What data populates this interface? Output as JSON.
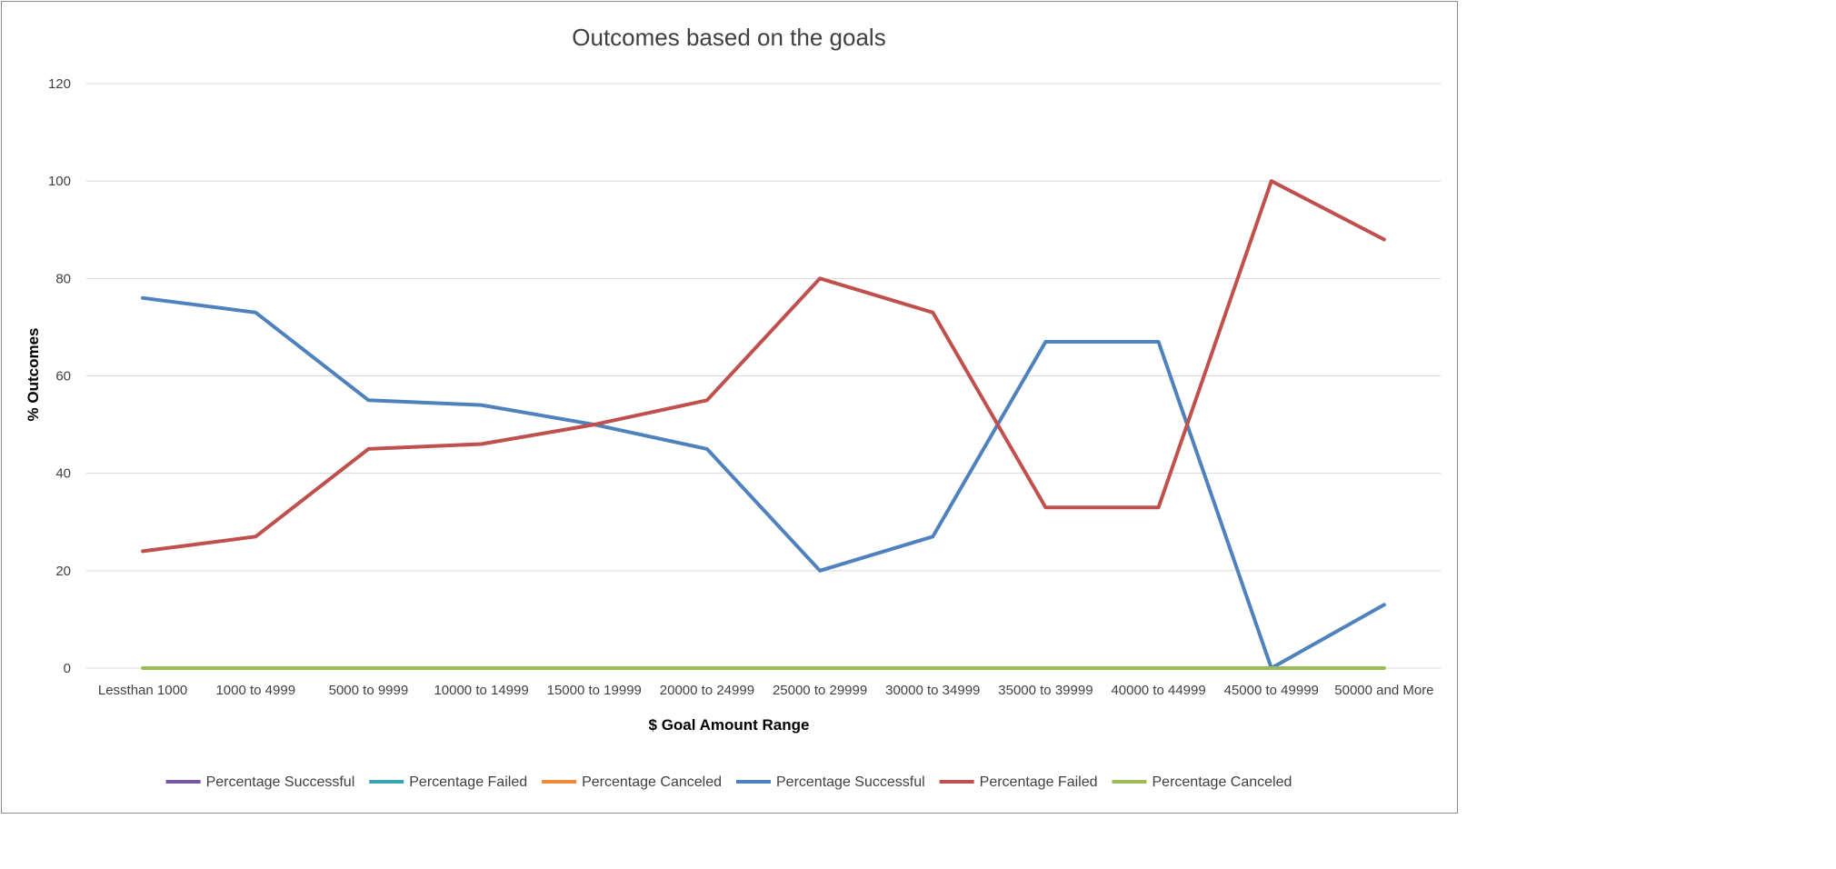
{
  "chart_data": {
    "type": "line",
    "title": "Outcomes based on the goals",
    "xlabel": "$ Goal Amount Range",
    "ylabel": "% Outcomes",
    "ylim": [
      0,
      120
    ],
    "yticks": [
      0,
      20,
      40,
      60,
      80,
      100,
      120
    ],
    "grid": true,
    "legend_position": "bottom",
    "categories": [
      "Lessthan 1000",
      "1000 to 4999",
      "5000 to 9999",
      "10000 to 14999",
      "15000 to 19999",
      "20000 to 24999",
      "25000 to 29999",
      "30000 to 34999",
      "35000 to 39999",
      "40000 to 44999",
      "45000 to 49999",
      "50000 and More"
    ],
    "series": [
      {
        "name": "Percentage Successful",
        "color": "#7b559e",
        "values": null
      },
      {
        "name": "Percentage Failed",
        "color": "#37a3b6",
        "values": null
      },
      {
        "name": "Percentage Canceled",
        "color": "#f08a34",
        "values": null
      },
      {
        "name": "Percentage Successful",
        "color": "#4f81bd",
        "values": [
          76,
          73,
          55,
          54,
          50,
          45,
          20,
          27,
          67,
          67,
          0,
          13
        ]
      },
      {
        "name": "Percentage Failed",
        "color": "#c0504d",
        "values": [
          24,
          27,
          45,
          46,
          50,
          55,
          80,
          73,
          33,
          33,
          100,
          88
        ]
      },
      {
        "name": "Percentage Canceled",
        "color": "#9bbb59",
        "values": [
          0,
          0,
          0,
          0,
          0,
          0,
          0,
          0,
          0,
          0,
          0,
          0
        ]
      }
    ]
  }
}
